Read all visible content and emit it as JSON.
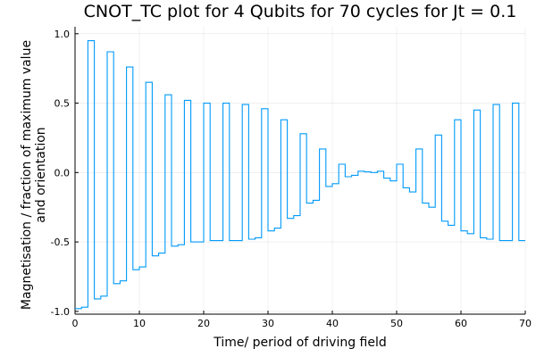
{
  "chart_data": {
    "type": "line",
    "title": "CNOT_TC plot for 4 Qubits for 70 cycles for Jt = 0.1",
    "xlabel": "Time/ period of driving field",
    "ylabel": [
      "Magnetisation / fraction of maximum value",
      "and orientation"
    ],
    "xlim": [
      0,
      70
    ],
    "ylim": [
      -1.02,
      1.05
    ],
    "x_ticks": [
      0,
      10,
      20,
      30,
      40,
      50,
      60,
      70
    ],
    "y_ticks": [
      -1.0,
      -0.5,
      0.0,
      0.5,
      1.0
    ],
    "x_tick_labels": [
      "0",
      "10",
      "20",
      "30",
      "40",
      "50",
      "60",
      "70"
    ],
    "y_tick_labels": [
      "-1.0",
      "-0.5",
      "0.0",
      "0.5",
      "1.0"
    ],
    "grid": true,
    "legend": "none",
    "series": [
      {
        "color": "#009AFA",
        "step": "post",
        "x": [
          0,
          1,
          2,
          3,
          4,
          5,
          6,
          7,
          8,
          9,
          10,
          11,
          12,
          13,
          14,
          15,
          16,
          17,
          18,
          19,
          20,
          21,
          22,
          23,
          24,
          25,
          26,
          27,
          28,
          29,
          30,
          31,
          32,
          33,
          34,
          35,
          36,
          37,
          38,
          39,
          40,
          41,
          42,
          43,
          44,
          45,
          46,
          47,
          48,
          49,
          50,
          51,
          52,
          53,
          54,
          55,
          56,
          57,
          58,
          59,
          60,
          61,
          62,
          63,
          64,
          65,
          66,
          67,
          68,
          69,
          70
        ],
        "y": [
          -0.98,
          -0.97,
          0.95,
          -0.91,
          -0.89,
          0.87,
          -0.8,
          -0.78,
          0.76,
          -0.7,
          -0.68,
          0.65,
          -0.6,
          -0.58,
          0.56,
          -0.53,
          -0.52,
          0.52,
          -0.5,
          -0.5,
          0.5,
          -0.49,
          -0.49,
          0.5,
          -0.49,
          -0.49,
          0.49,
          -0.48,
          -0.47,
          0.46,
          -0.42,
          -0.4,
          0.38,
          -0.33,
          -0.31,
          0.28,
          -0.22,
          -0.2,
          0.17,
          -0.1,
          -0.08,
          0.06,
          -0.03,
          -0.02,
          0.01,
          0.005,
          0.0,
          0.01,
          -0.04,
          -0.06,
          0.06,
          -0.11,
          -0.14,
          0.17,
          -0.22,
          -0.25,
          0.27,
          -0.35,
          -0.38,
          0.38,
          -0.42,
          -0.44,
          0.45,
          -0.47,
          -0.48,
          0.49,
          -0.49,
          -0.49,
          0.5,
          -0.49,
          -0.49
        ]
      }
    ]
  }
}
